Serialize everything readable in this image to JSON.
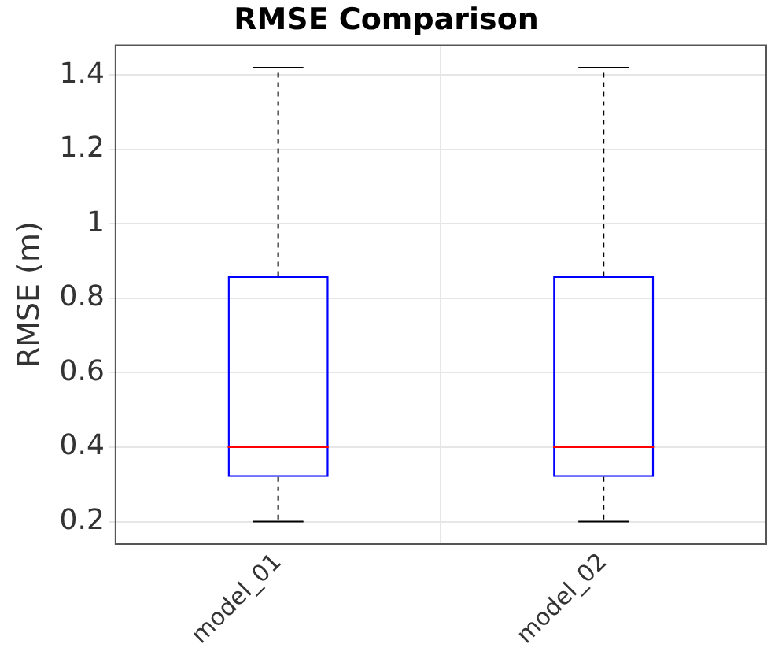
{
  "chart_data": {
    "type": "box",
    "title": "RMSE Comparison",
    "ylabel": "RMSE (m)",
    "categories": [
      "model_01",
      "model_02"
    ],
    "series": [
      {
        "color": "#0000ff",
        "boxes": [
          {
            "low": 0.2,
            "q1": 0.32,
            "median": 0.4,
            "q3": 0.86,
            "high": 1.42
          },
          {
            "low": 0.2,
            "q1": 0.32,
            "median": 0.4,
            "q3": 0.86,
            "high": 1.42
          }
        ]
      }
    ],
    "ylim": [
      0.14,
      1.48
    ],
    "yticks": [
      {
        "value": 0.2,
        "label": "0.2"
      },
      {
        "value": 0.4,
        "label": "0.4"
      },
      {
        "value": 0.6,
        "label": "0.6"
      },
      {
        "value": 0.8,
        "label": "0.8"
      },
      {
        "value": 1,
        "label": "1"
      },
      {
        "value": 1.2,
        "label": "1.2"
      },
      {
        "value": 1.4,
        "label": "1.4"
      }
    ],
    "grid": true,
    "legend": false
  }
}
